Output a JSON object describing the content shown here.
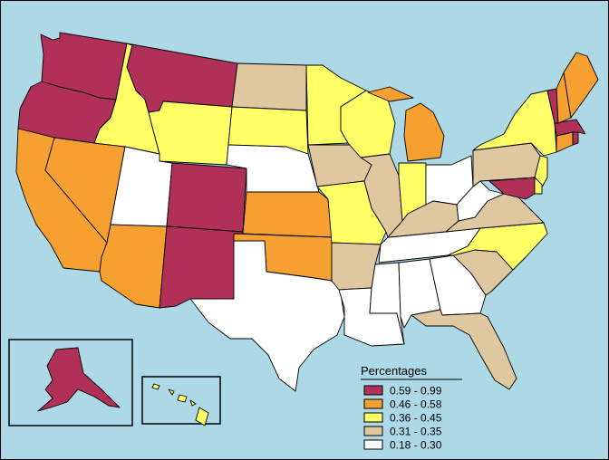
{
  "legend": {
    "title": "Percentages",
    "items": [
      {
        "label": "0.59 - 0.99",
        "color": "#b03058"
      },
      {
        "label": "0.46 - 0.58",
        "color": "#f5a030"
      },
      {
        "label": "0.36 - 0.45",
        "color": "#ffff66"
      },
      {
        "label": "0.31 - 0.35",
        "color": "#dfc8a0"
      },
      {
        "label": "0.18 - 0.30",
        "color": "#ffffff"
      }
    ]
  },
  "state_classes": {
    "WA": 0,
    "OR": 0,
    "MT": 0,
    "CO": 0,
    "NM": 0,
    "AK": 0,
    "VT": 0,
    "MA": 0,
    "MD": 0,
    "RI": 0,
    "CA": 1,
    "NV": 1,
    "AZ": 1,
    "KS": 1,
    "OK": 1,
    "MI": 1,
    "ME": 1,
    "CT": 1,
    "NH": 1,
    "ID": 2,
    "WY": 2,
    "SD": 2,
    "MN": 2,
    "WI": 2,
    "MO": 2,
    "IN": 2,
    "NY": 2,
    "NC": 2,
    "HI": 2,
    "NJ": 2,
    "DE": 2,
    "ND": 3,
    "IA": 3,
    "IL": 3,
    "AR": 3,
    "KY": 3,
    "VA": 3,
    "PA": 3,
    "SC": 3,
    "FL": 3,
    "UT": 4,
    "NE": 4,
    "TX": 4,
    "LA": 4,
    "MS": 4,
    "AL": 4,
    "GA": 4,
    "TN": 4,
    "OH": 4,
    "WV": 4
  },
  "colors": {
    "ocean": "#add8e6",
    "border": "#000000"
  }
}
